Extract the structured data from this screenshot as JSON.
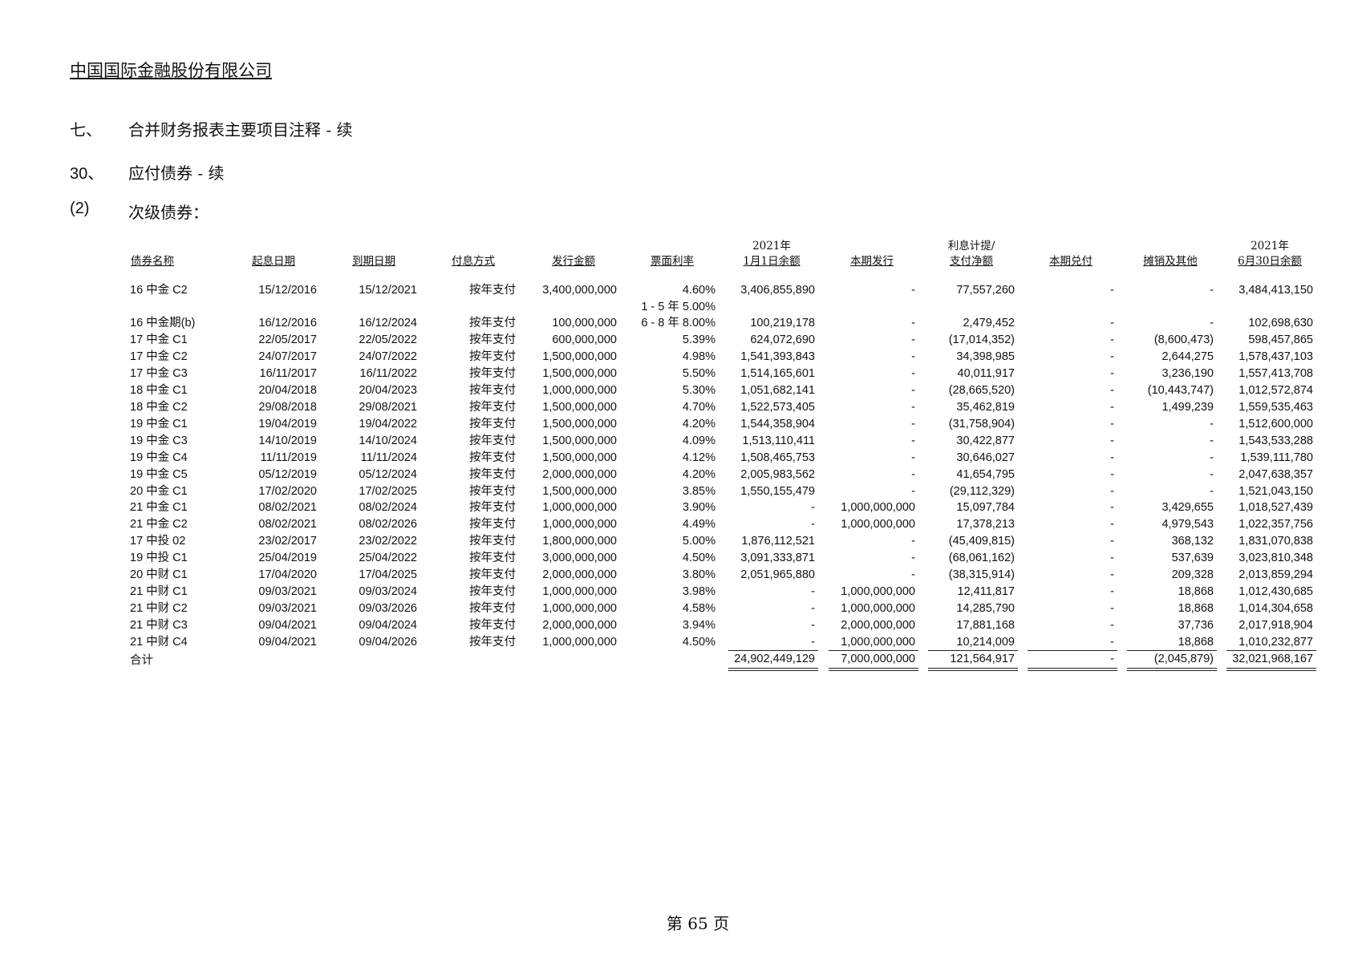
{
  "company": "中国国际金融股份有限公司",
  "sections": [
    {
      "num": "七、",
      "text": "合并财务报表主要项目注释 - 续"
    },
    {
      "num": "30、",
      "text": "应付债券 - 续"
    },
    {
      "num": "(2)",
      "text": "次级债券："
    }
  ],
  "table": {
    "headers": [
      {
        "top": "",
        "bottom": "债券名称"
      },
      {
        "top": "",
        "bottom": "起息日期"
      },
      {
        "top": "",
        "bottom": "到期日期"
      },
      {
        "top": "",
        "bottom": "付息方式"
      },
      {
        "top": "",
        "bottom": "发行金额"
      },
      {
        "top": "",
        "bottom": "票面利率"
      },
      {
        "top": "2021年",
        "bottom": "1月1日余额"
      },
      {
        "top": "",
        "bottom": "本期发行"
      },
      {
        "top": "利息计提/",
        "bottom": "支付净额"
      },
      {
        "top": "",
        "bottom": "本期兑付"
      },
      {
        "top": "",
        "bottom": "摊销及其他"
      },
      {
        "top": "2021年",
        "bottom": "6月30日余额"
      }
    ],
    "rows": [
      [
        "16 中金 C2",
        "15/12/2016",
        "15/12/2021",
        "按年支付",
        "3,400,000,000",
        "4.60%",
        "3,406,855,890",
        "-",
        "77,557,260",
        "-",
        "-",
        "3,484,413,150"
      ],
      [
        "16 中金期(b)",
        "16/12/2016",
        "16/12/2024",
        "按年支付",
        "100,000,000",
        "6 - 8 年 8.00%",
        "100,219,178",
        "-",
        "2,479,452",
        "-",
        "-",
        "102,698,630"
      ],
      [
        "17 中金 C1",
        "22/05/2017",
        "22/05/2022",
        "按年支付",
        "600,000,000",
        "5.39%",
        "624,072,690",
        "-",
        "(17,014,352)",
        "-",
        "(8,600,473)",
        "598,457,865"
      ],
      [
        "17 中金 C2",
        "24/07/2017",
        "24/07/2022",
        "按年支付",
        "1,500,000,000",
        "4.98%",
        "1,541,393,843",
        "-",
        "34,398,985",
        "-",
        "2,644,275",
        "1,578,437,103"
      ],
      [
        "17 中金 C3",
        "16/11/2017",
        "16/11/2022",
        "按年支付",
        "1,500,000,000",
        "5.50%",
        "1,514,165,601",
        "-",
        "40,011,917",
        "-",
        "3,236,190",
        "1,557,413,708"
      ],
      [
        "18 中金 C1",
        "20/04/2018",
        "20/04/2023",
        "按年支付",
        "1,000,000,000",
        "5.30%",
        "1,051,682,141",
        "-",
        "(28,665,520)",
        "-",
        "(10,443,747)",
        "1,012,572,874"
      ],
      [
        "18 中金 C2",
        "29/08/2018",
        "29/08/2021",
        "按年支付",
        "1,500,000,000",
        "4.70%",
        "1,522,573,405",
        "-",
        "35,462,819",
        "-",
        "1,499,239",
        "1,559,535,463"
      ],
      [
        "19 中金 C1",
        "19/04/2019",
        "19/04/2022",
        "按年支付",
        "1,500,000,000",
        "4.20%",
        "1,544,358,904",
        "-",
        "(31,758,904)",
        "-",
        "-",
        "1,512,600,000"
      ],
      [
        "19 中金 C3",
        "14/10/2019",
        "14/10/2024",
        "按年支付",
        "1,500,000,000",
        "4.09%",
        "1,513,110,411",
        "-",
        "30,422,877",
        "-",
        "-",
        "1,543,533,288"
      ],
      [
        "19 中金 C4",
        "11/11/2019",
        "11/11/2024",
        "按年支付",
        "1,500,000,000",
        "4.12%",
        "1,508,465,753",
        "-",
        "30,646,027",
        "-",
        "-",
        "1,539,111,780"
      ],
      [
        "19 中金 C5",
        "05/12/2019",
        "05/12/2024",
        "按年支付",
        "2,000,000,000",
        "4.20%",
        "2,005,983,562",
        "-",
        "41,654,795",
        "-",
        "-",
        "2,047,638,357"
      ],
      [
        "20 中金 C1",
        "17/02/2020",
        "17/02/2025",
        "按年支付",
        "1,500,000,000",
        "3.85%",
        "1,550,155,479",
        "-",
        "(29,112,329)",
        "-",
        "-",
        "1,521,043,150"
      ],
      [
        "21 中金 C1",
        "08/02/2021",
        "08/02/2024",
        "按年支付",
        "1,000,000,000",
        "3.90%",
        "-",
        "1,000,000,000",
        "15,097,784",
        "-",
        "3,429,655",
        "1,018,527,439"
      ],
      [
        "21 中金 C2",
        "08/02/2021",
        "08/02/2026",
        "按年支付",
        "1,000,000,000",
        "4.49%",
        "-",
        "1,000,000,000",
        "17,378,213",
        "-",
        "4,979,543",
        "1,022,357,756"
      ],
      [
        "17 中投 02",
        "23/02/2017",
        "23/02/2022",
        "按年支付",
        "1,800,000,000",
        "5.00%",
        "1,876,112,521",
        "-",
        "(45,409,815)",
        "-",
        "368,132",
        "1,831,070,838"
      ],
      [
        "19 中投 C1",
        "25/04/2019",
        "25/04/2022",
        "按年支付",
        "3,000,000,000",
        "4.50%",
        "3,091,333,871",
        "-",
        "(68,061,162)",
        "-",
        "537,639",
        "3,023,810,348"
      ],
      [
        "20 中财 C1",
        "17/04/2020",
        "17/04/2025",
        "按年支付",
        "2,000,000,000",
        "3.80%",
        "2,051,965,880",
        "-",
        "(38,315,914)",
        "-",
        "209,328",
        "2,013,859,294"
      ],
      [
        "21 中财 C1",
        "09/03/2021",
        "09/03/2024",
        "按年支付",
        "1,000,000,000",
        "3.98%",
        "-",
        "1,000,000,000",
        "12,411,817",
        "-",
        "18,868",
        "1,012,430,685"
      ],
      [
        "21 中财 C2",
        "09/03/2021",
        "09/03/2026",
        "按年支付",
        "1,000,000,000",
        "4.58%",
        "-",
        "1,000,000,000",
        "14,285,790",
        "-",
        "18,868",
        "1,014,304,658"
      ],
      [
        "21 中财 C3",
        "09/04/2021",
        "09/04/2024",
        "按年支付",
        "2,000,000,000",
        "3.94%",
        "-",
        "2,000,000,000",
        "17,881,168",
        "-",
        "37,736",
        "2,017,918,904"
      ],
      [
        "21 中财 C4",
        "09/04/2021",
        "09/04/2026",
        "按年支付",
        "1,000,000,000",
        "4.50%",
        "-",
        "1,000,000,000",
        "10,214,009",
        "-",
        "18,868",
        "1,010,232,877"
      ]
    ],
    "rate_extra_line": "1 - 5 年 5.00%",
    "total": {
      "label": "合计",
      "values": [
        "24,902,449,129",
        "7,000,000,000",
        "121,564,917",
        "-",
        "(2,045,879)",
        "32,021,968,167"
      ]
    }
  },
  "footer": "第 65 页"
}
